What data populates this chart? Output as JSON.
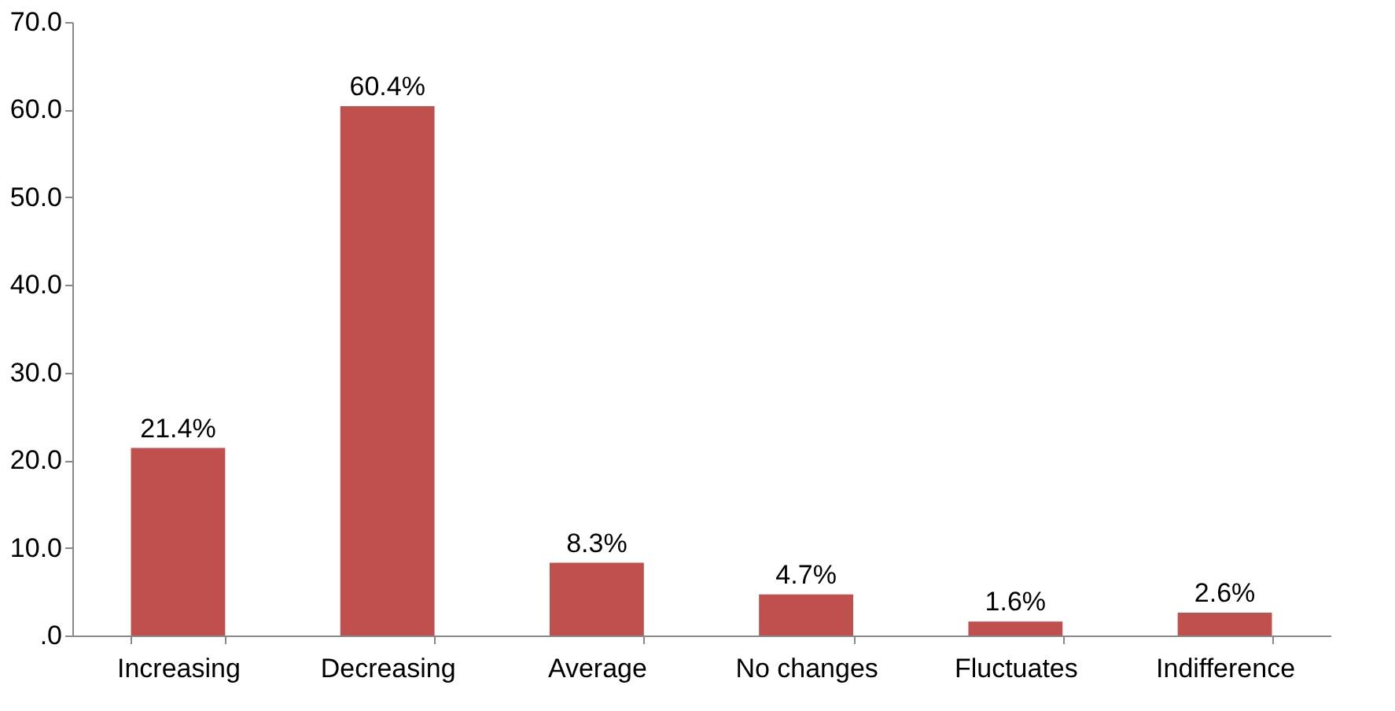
{
  "chart_data": {
    "type": "bar",
    "categories": [
      "Increasing",
      "Decreasing",
      "Average",
      "No changes",
      "Fluctuates",
      "Indifference"
    ],
    "values": [
      21.4,
      60.4,
      8.3,
      4.7,
      1.6,
      2.6
    ],
    "value_labels": [
      "21.4%",
      "60.4%",
      "8.3%",
      "4.7%",
      "1.6%",
      "2.6%"
    ],
    "color": "#c0504d",
    "ylim": [
      0,
      70
    ],
    "yticks": [
      {
        "value": 0,
        "label": ".0"
      },
      {
        "value": 10,
        "label": "10.0"
      },
      {
        "value": 20,
        "label": "20.0"
      },
      {
        "value": 30,
        "label": "30.0"
      },
      {
        "value": 40,
        "label": "40.0"
      },
      {
        "value": 50,
        "label": "50.0"
      },
      {
        "value": 60,
        "label": "60.0"
      },
      {
        "value": 70,
        "label": "70.0"
      }
    ],
    "grid": false
  }
}
